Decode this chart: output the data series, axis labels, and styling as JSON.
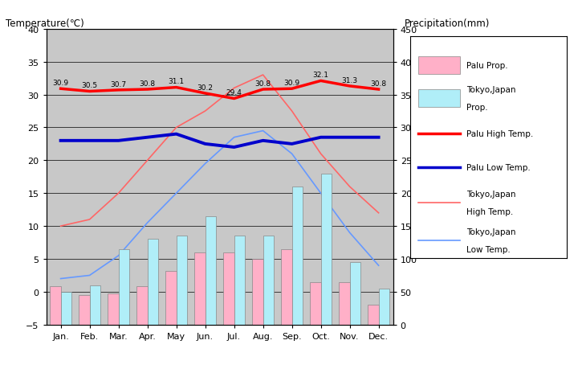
{
  "months": [
    "Jan.",
    "Feb.",
    "Mar.",
    "Apr.",
    "May",
    "Jun.",
    "Jul.",
    "Aug.",
    "Sep.",
    "Oct.",
    "Nov.",
    "Dec."
  ],
  "palu_high_temp": [
    30.9,
    30.5,
    30.7,
    30.8,
    31.1,
    30.2,
    29.4,
    30.8,
    30.9,
    32.1,
    31.3,
    30.8
  ],
  "palu_low_temp": [
    23.0,
    23.0,
    23.0,
    23.5,
    24.0,
    22.5,
    22.0,
    23.0,
    22.5,
    23.5,
    23.5,
    23.5
  ],
  "tokyo_high_temp": [
    10.0,
    11.0,
    15.0,
    20.0,
    25.0,
    27.5,
    31.0,
    33.0,
    27.5,
    21.0,
    16.0,
    12.0
  ],
  "tokyo_low_temp": [
    2.0,
    2.5,
    5.5,
    10.5,
    15.0,
    19.5,
    23.5,
    24.5,
    21.0,
    15.0,
    9.0,
    4.0
  ],
  "palu_precip": [
    58,
    45,
    47,
    58,
    82,
    110,
    110,
    100,
    115,
    65,
    65,
    30
  ],
  "tokyo_precip": [
    50,
    60,
    115,
    130,
    135,
    165,
    135,
    135,
    210,
    230,
    95,
    55
  ],
  "temp_ylim": [
    -5,
    40
  ],
  "precip_ylim": [
    0,
    450
  ],
  "bg_color": "#c8c8c8",
  "palu_high_color": "#ff0000",
  "palu_low_color": "#0000cc",
  "tokyo_high_color": "#ff6666",
  "tokyo_low_color": "#6699ff",
  "palu_precip_color": "#ffb0c8",
  "tokyo_precip_color": "#b0eef8",
  "title_left": "Temperature(℃)",
  "title_right": "Precipitation(mm)",
  "legend_labels": [
    "Palu Prop.",
    "Tokyo,Japan\nProp.",
    "Palu High Temp.",
    "Palu Low Temp.",
    "Tokyo,Japan\nHigh Temp.",
    "Tokyo,Japan\nLow Temp."
  ]
}
